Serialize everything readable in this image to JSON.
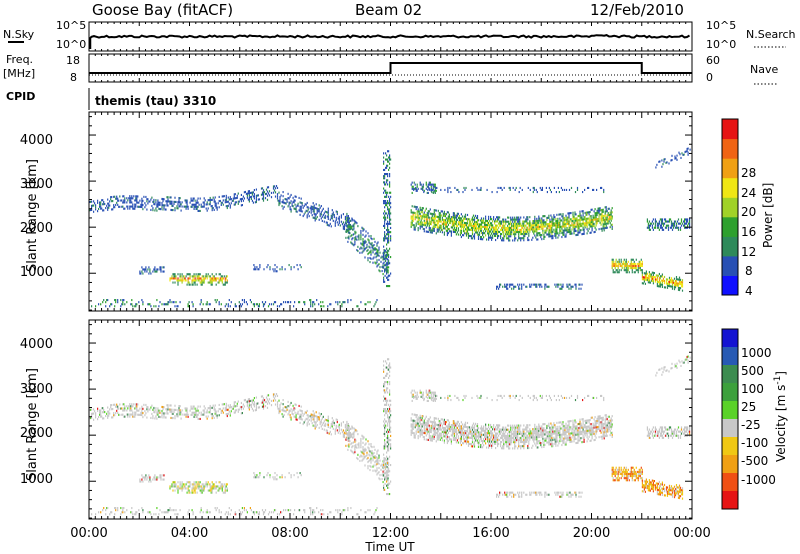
{
  "header": {
    "station": "Goose Bay (fitACF)",
    "beam": "Beam 02",
    "date": "12/Feb/2010"
  },
  "top_panel": {
    "left_label": "N.Sky",
    "left_ticks": [
      "10^5",
      "10^0"
    ],
    "right_label": "N.Search",
    "right_ticks": [
      "10^5",
      "10^0"
    ]
  },
  "freq_panel": {
    "left_label_1": "Freq.",
    "left_label_2": "[MHz]",
    "left_ticks": [
      "18",
      "8"
    ],
    "right_label": "Nave",
    "right_ticks": [
      "60",
      "0"
    ]
  },
  "cpid": {
    "label": "CPID",
    "value": "themis (tau) 3310"
  },
  "colors": {
    "power": [
      "#1010ff",
      "#2850b4",
      "#2e8a5a",
      "#2ea02e",
      "#a0d228",
      "#f0e614",
      "#f0a014",
      "#f06414",
      "#e61414"
    ],
    "velocity": [
      "#1414d2",
      "#285ab4",
      "#3c8c50",
      "#3ca03c",
      "#5ad228",
      "#c8c8c8",
      "#f0c814",
      "#f0a014",
      "#f05014",
      "#e61414"
    ]
  },
  "chart_data": [
    {
      "type": "line",
      "title": "Goose Bay (fitACF)",
      "series": [],
      "x_ticks": [
        "00:00",
        "04:00",
        "08:00",
        "12:00",
        "16:00",
        "20:00",
        "00:00"
      ]
    },
    {
      "type": "line",
      "series": [],
      "step_changes_utc": [
        "12:00",
        "22:00"
      ]
    },
    {
      "type": "heatmap",
      "ylabel": "Slant Range [km]",
      "yticks": [
        "4000",
        "3000",
        "2000",
        "1000"
      ],
      "ylim": [
        180,
        4500
      ],
      "xlim": [
        0,
        24
      ],
      "colorbar": {
        "label": "Power [dB]",
        "ticks": [
          "28",
          "24",
          "20",
          "16",
          "12",
          "8",
          "4"
        ]
      }
    },
    {
      "type": "heatmap",
      "ylabel": "Slant Range [km]",
      "yticks": [
        "4000",
        "3000",
        "2000",
        "1000"
      ],
      "ylim": [
        180,
        4500
      ],
      "xlim": [
        0,
        24
      ],
      "xlabel": "Time UT",
      "xticks": [
        "00:00",
        "04:00",
        "08:00",
        "12:00",
        "16:00",
        "20:00",
        "00:00"
      ],
      "colorbar": {
        "label": "Velocity [m s-1]",
        "ticks": [
          "1000",
          "500",
          "100",
          "25",
          "-25",
          "-100",
          "-500",
          "-1000"
        ]
      }
    }
  ]
}
